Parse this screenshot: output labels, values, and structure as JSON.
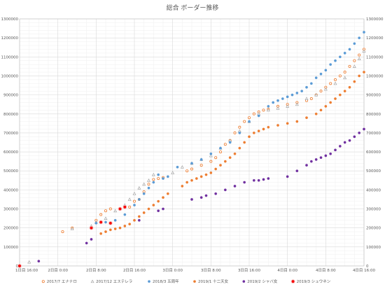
{
  "chart_data": {
    "type": "scatter",
    "title": "総合 ボーダー推移",
    "xlabel": "",
    "ylabel": "",
    "x_ticks": [
      "1日目 16:00",
      "2日目 0:00",
      "2日目 8:00",
      "2日目 16:00",
      "3日目 0:00",
      "3日目 8:00",
      "3日目 16:00",
      "4日目 0:00",
      "4日目 8:00",
      "4日目 16:00"
    ],
    "xlim": [
      0,
      72
    ],
    "ylim": [
      0,
      1300000
    ],
    "y_ticks": [
      0,
      100000,
      200000,
      300000,
      400000,
      500000,
      600000,
      700000,
      800000,
      900000,
      1000000,
      1100000,
      1200000,
      1300000
    ],
    "y_tick_labels": [
      "0",
      "100000",
      "200000",
      "300000",
      "400000",
      "500000",
      "600000",
      "700000",
      "800000",
      "900000",
      "1000000",
      "1100000",
      "1200000",
      "1300000"
    ],
    "secondary_y_axis": true,
    "grid": true,
    "legend_position": "bottom",
    "series": [
      {
        "name": "2017/7 エナナロ",
        "color": "#ed7d31",
        "marker": "circle-open",
        "points": [
          [
            9,
            180000
          ],
          [
            11,
            200000
          ],
          [
            16,
            240000
          ],
          [
            17,
            270000
          ],
          [
            18,
            290000
          ],
          [
            19,
            300000
          ],
          [
            21,
            300000
          ],
          [
            23,
            310000
          ],
          [
            24,
            340000
          ],
          [
            25,
            350000
          ],
          [
            26,
            390000
          ],
          [
            27,
            430000
          ],
          [
            28,
            455000
          ],
          [
            29,
            460000
          ],
          [
            30,
            465000
          ],
          [
            35,
            500000
          ],
          [
            36,
            510000
          ],
          [
            38,
            530000
          ],
          [
            40,
            550000
          ],
          [
            41,
            570000
          ],
          [
            42,
            600000
          ],
          [
            43,
            640000
          ],
          [
            44,
            660000
          ],
          [
            45,
            700000
          ],
          [
            46,
            730000
          ],
          [
            47,
            760000
          ],
          [
            48,
            780000
          ],
          [
            49,
            800000
          ],
          [
            50,
            810000
          ],
          [
            51,
            820000
          ],
          [
            52,
            825000
          ],
          [
            54,
            840000
          ],
          [
            56,
            850000
          ],
          [
            58,
            860000
          ],
          [
            60,
            870000
          ],
          [
            61,
            880000
          ],
          [
            62,
            900000
          ],
          [
            63,
            920000
          ],
          [
            64,
            940000
          ],
          [
            65,
            960000
          ],
          [
            66,
            980000
          ],
          [
            67,
            1000000
          ],
          [
            68,
            1020000
          ],
          [
            69,
            1050000
          ],
          [
            70,
            1080000
          ],
          [
            71,
            1110000
          ],
          [
            72,
            1140000
          ]
        ]
      },
      {
        "name": "2017/12 エステレラ",
        "color": "#a5a5a5",
        "marker": "triangle-open",
        "points": [
          [
            2,
            20000
          ],
          [
            11,
            195000
          ],
          [
            15,
            210000
          ],
          [
            16,
            230000
          ],
          [
            18,
            250000
          ],
          [
            20,
            290000
          ],
          [
            22,
            320000
          ],
          [
            23,
            350000
          ],
          [
            24,
            380000
          ],
          [
            25,
            410000
          ],
          [
            26,
            430000
          ],
          [
            27,
            450000
          ],
          [
            28,
            480000
          ],
          [
            32,
            490000
          ],
          [
            34,
            520000
          ],
          [
            36,
            540000
          ],
          [
            38,
            560000
          ],
          [
            40,
            580000
          ],
          [
            42,
            620000
          ],
          [
            44,
            660000
          ],
          [
            46,
            710000
          ],
          [
            48,
            760000
          ],
          [
            50,
            800000
          ],
          [
            52,
            820000
          ],
          [
            54,
            830000
          ],
          [
            56,
            840000
          ],
          [
            58,
            850000
          ],
          [
            60,
            880000
          ],
          [
            62,
            900000
          ],
          [
            64,
            930000
          ],
          [
            66,
            960000
          ],
          [
            68,
            990000
          ],
          [
            70,
            1050000
          ],
          [
            71,
            1090000
          ],
          [
            72,
            1130000
          ]
        ]
      },
      {
        "name": "2018/3 五周年",
        "color": "#5b9bd5",
        "marker": "circle",
        "points": [
          [
            16,
            225000
          ],
          [
            18,
            230000
          ],
          [
            20,
            240000
          ],
          [
            22,
            270000
          ],
          [
            24,
            320000
          ],
          [
            25,
            350000
          ],
          [
            26,
            380000
          ],
          [
            27,
            410000
          ],
          [
            28,
            440000
          ],
          [
            29,
            480000
          ],
          [
            30,
            460000
          ],
          [
            31,
            470000
          ],
          [
            33,
            520000
          ],
          [
            36,
            540000
          ],
          [
            38,
            560000
          ],
          [
            40,
            590000
          ],
          [
            42,
            620000
          ],
          [
            44,
            650000
          ],
          [
            46,
            700000
          ],
          [
            48,
            760000
          ],
          [
            50,
            790000
          ],
          [
            52,
            840000
          ],
          [
            53,
            860000
          ],
          [
            54,
            870000
          ],
          [
            55,
            880000
          ],
          [
            56,
            890000
          ],
          [
            57,
            900000
          ],
          [
            58,
            910000
          ],
          [
            59,
            920000
          ],
          [
            60,
            940000
          ],
          [
            61,
            960000
          ],
          [
            62,
            990000
          ],
          [
            63,
            1010000
          ],
          [
            64,
            1030000
          ],
          [
            65,
            1060000
          ],
          [
            66,
            1080000
          ],
          [
            67,
            1100000
          ],
          [
            68,
            1120000
          ],
          [
            69,
            1140000
          ],
          [
            70,
            1170000
          ],
          [
            71,
            1200000
          ],
          [
            72,
            1230000
          ]
        ]
      },
      {
        "name": "2019/1 十二天女",
        "color": "#ed7d31",
        "marker": "circle",
        "points": [
          [
            17,
            170000
          ],
          [
            18,
            180000
          ],
          [
            19,
            190000
          ],
          [
            20,
            195000
          ],
          [
            21,
            200000
          ],
          [
            22,
            210000
          ],
          [
            23,
            220000
          ],
          [
            24,
            240000
          ],
          [
            25,
            260000
          ],
          [
            26,
            280000
          ],
          [
            27,
            300000
          ],
          [
            28,
            320000
          ],
          [
            29,
            340000
          ],
          [
            30,
            360000
          ],
          [
            31,
            380000
          ],
          [
            34,
            420000
          ],
          [
            35,
            440000
          ],
          [
            36,
            450000
          ],
          [
            37,
            460000
          ],
          [
            38,
            470000
          ],
          [
            39,
            480000
          ],
          [
            40,
            490000
          ],
          [
            41,
            510000
          ],
          [
            42,
            530000
          ],
          [
            43,
            550000
          ],
          [
            44,
            570000
          ],
          [
            45,
            590000
          ],
          [
            46,
            620000
          ],
          [
            47,
            650000
          ],
          [
            48,
            680000
          ],
          [
            49,
            700000
          ],
          [
            50,
            710000
          ],
          [
            51,
            720000
          ],
          [
            52,
            730000
          ],
          [
            54,
            740000
          ],
          [
            56,
            750000
          ],
          [
            58,
            760000
          ],
          [
            60,
            780000
          ],
          [
            62,
            800000
          ],
          [
            63,
            820000
          ],
          [
            64,
            840000
          ],
          [
            65,
            860000
          ],
          [
            66,
            880000
          ],
          [
            67,
            900000
          ],
          [
            68,
            920000
          ],
          [
            69,
            940000
          ],
          [
            70,
            970000
          ],
          [
            71,
            1000000
          ],
          [
            72,
            1020000
          ]
        ]
      },
      {
        "name": "2019/2 シャバ女",
        "color": "#7030a0",
        "marker": "circle",
        "points": [
          [
            0,
            0
          ],
          [
            4,
            25000
          ],
          [
            14,
            120000
          ],
          [
            15,
            140000
          ],
          [
            25,
            240000
          ],
          [
            29,
            290000
          ],
          [
            30,
            300000
          ],
          [
            36,
            350000
          ],
          [
            38,
            360000
          ],
          [
            39,
            370000
          ],
          [
            41,
            380000
          ],
          [
            43,
            400000
          ],
          [
            45,
            420000
          ],
          [
            47,
            440000
          ],
          [
            49,
            450000
          ],
          [
            50,
            450000
          ],
          [
            51,
            455000
          ],
          [
            52,
            460000
          ],
          [
            56,
            470000
          ],
          [
            58,
            500000
          ],
          [
            60,
            530000
          ],
          [
            61,
            550000
          ],
          [
            62,
            560000
          ],
          [
            63,
            570000
          ],
          [
            64,
            580000
          ],
          [
            65,
            590000
          ],
          [
            66,
            610000
          ],
          [
            67,
            630000
          ],
          [
            68,
            650000
          ],
          [
            69,
            660000
          ],
          [
            70,
            680000
          ],
          [
            71,
            700000
          ],
          [
            72,
            720000
          ]
        ]
      },
      {
        "name": "2019/3 シュウネン",
        "color": "#ff0000",
        "marker": "circle-ring",
        "points": [
          [
            0,
            0
          ],
          [
            15,
            200000
          ],
          [
            17,
            230000
          ],
          [
            19,
            225000
          ],
          [
            21,
            300000
          ],
          [
            22,
            310000
          ]
        ]
      }
    ]
  }
}
